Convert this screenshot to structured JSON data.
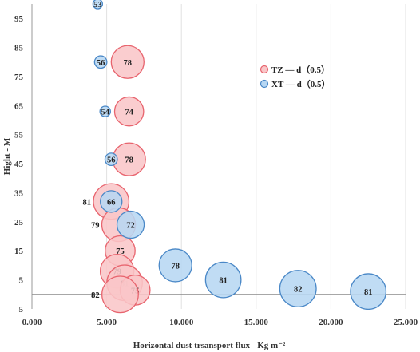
{
  "chart_data": {
    "type": "scatter",
    "variant": "bubble",
    "title": "",
    "xlabel": "Horizontal dust trsansport flux - Kg m⁻²",
    "ylabel": "Hight - M",
    "xlim": [
      0,
      25
    ],
    "ylim": [
      -5,
      100
    ],
    "x_ticks": [
      "0.000",
      "5.000",
      "10.000",
      "15.000",
      "20.000",
      "25.000"
    ],
    "y_ticks": [
      "-5",
      "5",
      "15",
      "25",
      "35",
      "45",
      "55",
      "65",
      "75",
      "85",
      "95"
    ],
    "grid": "vertical",
    "legend_position": "right",
    "series": [
      {
        "name": "TZ — d（0.5）",
        "color": "#e8646e",
        "fill": "#f9c6c8",
        "points": [
          {
            "x": 6.4,
            "y": 80,
            "label": "78"
          },
          {
            "x": 6.5,
            "y": 63,
            "label": "74"
          },
          {
            "x": 6.5,
            "y": 46.5,
            "label": "78"
          },
          {
            "x": 5.3,
            "y": 32,
            "label": "81"
          },
          {
            "x": 5.8,
            "y": 24,
            "label": "79"
          },
          {
            "x": 5.9,
            "y": 15,
            "label": "75"
          },
          {
            "x": 5.7,
            "y": 8,
            "label": "79"
          },
          {
            "x": 6.2,
            "y": 4,
            "label": "81"
          },
          {
            "x": 6.9,
            "y": 1.5,
            "label": "75"
          },
          {
            "x": 5.9,
            "y": 0,
            "label": "82"
          }
        ]
      },
      {
        "name": "XT — d（0.5）",
        "color": "#4a88c7",
        "fill": "#b7d7f3",
        "points": [
          {
            "x": 4.4,
            "y": 100,
            "label": "53"
          },
          {
            "x": 4.6,
            "y": 80,
            "label": "56"
          },
          {
            "x": 4.9,
            "y": 63,
            "label": "54"
          },
          {
            "x": 5.3,
            "y": 46.5,
            "label": "56"
          },
          {
            "x": 5.3,
            "y": 32,
            "label": "66"
          },
          {
            "x": 6.6,
            "y": 24,
            "label": "72"
          },
          {
            "x": 9.6,
            "y": 10,
            "label": "78"
          },
          {
            "x": 12.8,
            "y": 5,
            "label": "81"
          },
          {
            "x": 17.8,
            "y": 2,
            "label": "82"
          },
          {
            "x": 22.5,
            "y": 1,
            "label": "81"
          }
        ]
      }
    ]
  }
}
